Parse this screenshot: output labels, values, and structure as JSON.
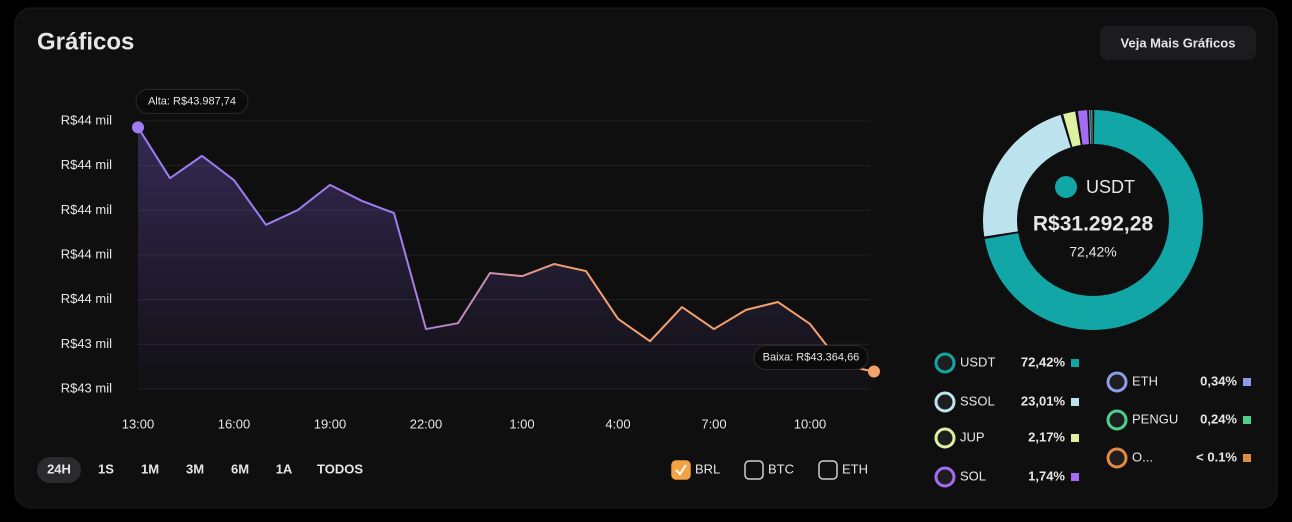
{
  "header": {
    "title": "Gráficos",
    "button": "Veja Mais Gráficos"
  },
  "chart_data": [
    {
      "type": "line",
      "categories": [
        "13:00",
        null,
        null,
        "16:00",
        null,
        null,
        "19:00",
        null,
        null,
        "22:00",
        null,
        null,
        "1:00",
        null,
        null,
        "4:00",
        null,
        null,
        "7:00",
        null,
        null,
        "10:00",
        null,
        null
      ],
      "values": [
        43987.74,
        43858,
        43915,
        43853,
        43739,
        43777,
        43841,
        43800,
        43769,
        43473,
        43488,
        43616,
        43608,
        43639,
        43621,
        43499,
        43442,
        43529,
        43473,
        43522,
        43542,
        43486,
        43381,
        43364.66
      ],
      "ylim": [
        43320,
        44004
      ],
      "yticks": [
        {
          "value": 43320,
          "label": "R$43 mil"
        },
        {
          "value": 43434,
          "label": "R$43 mil"
        },
        {
          "value": 43548,
          "label": "R$44 mil"
        },
        {
          "value": 43662,
          "label": "R$44 mil"
        },
        {
          "value": 43776,
          "label": "R$44 mil"
        },
        {
          "value": 43890,
          "label": "R$44 mil"
        },
        {
          "value": 44004,
          "label": "R$44 mil"
        }
      ],
      "grid": true,
      "color_start": "#a07cf0",
      "color_end": "#f4a06a",
      "high_label": "Alta: R$43.987,74",
      "low_label": "Baixa: R$43.364,66"
    },
    {
      "type": "pie",
      "categories": [
        "USDT",
        "SSOL",
        "JUP",
        "SOL",
        "ETH",
        "PENGU",
        "O..."
      ],
      "values": [
        72.42,
        23.01,
        2.17,
        1.74,
        0.34,
        0.24,
        0.08
      ],
      "value_labels": [
        "72,42%",
        "23,01%",
        "2,17%",
        "1,74%",
        "0,34%",
        "0,24%",
        "< 0.1%"
      ],
      "colors": [
        "#13a6a6",
        "#bde4ee",
        "#def1a0",
        "#a46cf2",
        "#8c9ce8",
        "#4fcf8c",
        "#e08a42"
      ],
      "selected": 0,
      "center_amount": "R$31.292,28"
    }
  ],
  "controls": {
    "ranges": [
      "24H",
      "1S",
      "1M",
      "3M",
      "6M",
      "1A",
      "TODOS"
    ],
    "active": 0,
    "currencies": [
      "BRL",
      "BTC",
      "ETH"
    ],
    "checked": [
      true,
      false,
      false
    ],
    "check_color": "#f4a244"
  }
}
